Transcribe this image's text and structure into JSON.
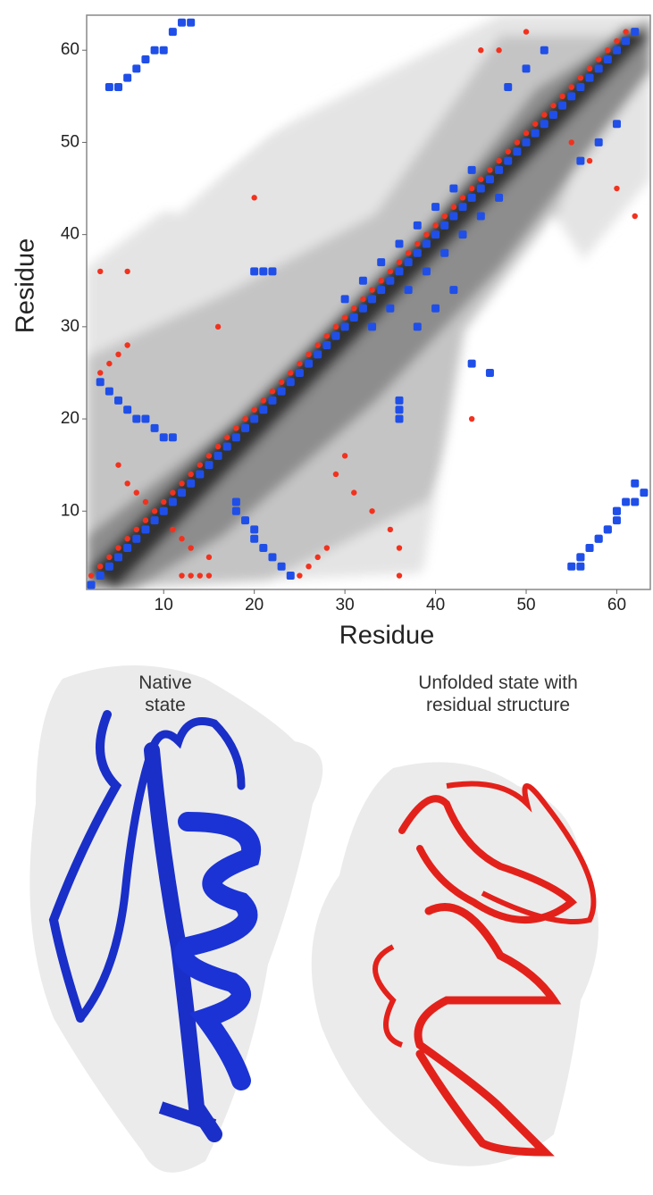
{
  "chart_data": {
    "type": "scatter",
    "x_label": "Residue",
    "y_label": "Residue",
    "xlim": [
      1.5,
      63.7
    ],
    "ylim": [
      1.5,
      63.8
    ],
    "xticks": [
      10,
      20,
      30,
      40,
      50,
      60
    ],
    "yticks": [
      10,
      20,
      30,
      40,
      50,
      60
    ],
    "series": [
      {
        "color": "#1f4fe8",
        "marker": "square",
        "x": [
          2,
          3,
          4,
          5,
          6,
          7,
          8,
          9,
          10,
          11,
          12,
          13,
          14,
          15,
          16,
          17,
          18,
          19,
          20,
          21,
          22,
          23,
          24,
          25,
          26,
          27,
          28,
          29,
          30,
          31,
          32,
          33,
          34,
          35,
          36,
          37,
          38,
          39,
          40,
          41,
          42,
          43,
          44,
          45,
          46,
          47,
          48,
          49,
          50,
          51,
          52,
          53,
          54,
          55,
          56,
          57,
          58,
          59,
          60,
          61,
          62,
          3,
          4,
          5,
          6,
          7,
          8,
          9,
          10,
          11,
          24,
          23,
          22,
          21,
          20,
          20,
          19,
          18,
          18,
          4,
          5,
          6,
          7,
          8,
          9,
          10,
          11,
          12,
          13,
          56,
          56,
          57,
          58,
          59,
          60,
          60,
          62,
          63,
          30,
          32,
          34,
          36,
          38,
          40,
          42,
          44,
          33,
          35,
          37,
          39,
          41,
          43,
          45,
          47,
          20,
          21,
          22,
          36,
          36,
          36,
          48,
          50,
          52,
          56,
          58,
          60,
          55,
          56,
          57,
          58,
          59,
          60,
          61,
          62,
          38,
          40,
          42,
          44,
          46
        ],
        "values": [
          2,
          3,
          4,
          5,
          6,
          7,
          8,
          9,
          10,
          11,
          12,
          13,
          14,
          15,
          16,
          17,
          18,
          19,
          20,
          21,
          22,
          23,
          24,
          25,
          26,
          27,
          28,
          29,
          30,
          31,
          32,
          33,
          34,
          35,
          36,
          37,
          38,
          39,
          40,
          41,
          42,
          43,
          44,
          45,
          46,
          47,
          48,
          49,
          50,
          51,
          52,
          53,
          54,
          55,
          56,
          57,
          58,
          59,
          60,
          61,
          62,
          24,
          23,
          22,
          21,
          20,
          20,
          19,
          18,
          18,
          3,
          4,
          5,
          6,
          7,
          8,
          9,
          10,
          11,
          56,
          56,
          57,
          58,
          59,
          60,
          60,
          62,
          63,
          63,
          4,
          5,
          6,
          7,
          8,
          9,
          10,
          11,
          12,
          33,
          35,
          37,
          39,
          41,
          43,
          45,
          47,
          30,
          32,
          34,
          36,
          38,
          40,
          42,
          44,
          36,
          36,
          36,
          20,
          21,
          22,
          56,
          58,
          60,
          48,
          50,
          52,
          4,
          5,
          6,
          7,
          8,
          10,
          11,
          13,
          30,
          32,
          34,
          26,
          25
        ]
      },
      {
        "color": "#f2321e",
        "marker": "dot",
        "x": [
          2,
          3,
          4,
          5,
          6,
          7,
          8,
          9,
          10,
          11,
          12,
          13,
          14,
          15,
          16,
          17,
          18,
          19,
          20,
          21,
          22,
          23,
          24,
          25,
          26,
          27,
          28,
          29,
          30,
          31,
          32,
          33,
          34,
          35,
          36,
          37,
          38,
          39,
          40,
          41,
          42,
          43,
          44,
          45,
          46,
          47,
          48,
          49,
          50,
          51,
          52,
          53,
          54,
          55,
          56,
          57,
          58,
          59,
          60,
          61,
          5,
          6,
          7,
          8,
          15,
          13,
          12,
          11,
          45,
          47,
          50,
          55,
          57,
          60,
          62,
          30,
          16,
          36,
          36,
          6,
          3,
          20,
          44,
          3,
          4,
          5,
          6,
          25,
          26,
          27,
          28,
          12,
          13,
          14,
          15,
          29,
          31,
          33,
          35
        ],
        "values": [
          3,
          4,
          5,
          6,
          7,
          8,
          9,
          10,
          11,
          12,
          13,
          14,
          15,
          16,
          17,
          18,
          19,
          20,
          21,
          22,
          23,
          24,
          25,
          26,
          27,
          28,
          29,
          30,
          31,
          32,
          33,
          34,
          35,
          36,
          37,
          38,
          39,
          40,
          41,
          42,
          43,
          44,
          45,
          46,
          47,
          48,
          49,
          50,
          51,
          52,
          53,
          54,
          55,
          56,
          57,
          58,
          59,
          60,
          61,
          62,
          15,
          13,
          12,
          11,
          5,
          6,
          7,
          8,
          60,
          60,
          62,
          50,
          48,
          45,
          42,
          16,
          30,
          6,
          3,
          36,
          36,
          44,
          20,
          25,
          26,
          27,
          28,
          3,
          4,
          5,
          6,
          3,
          3,
          3,
          3,
          14,
          12,
          10,
          8
        ]
      }
    ]
  },
  "captions": {
    "native": "Native state",
    "unfolded": "Unfolded state with residual structure"
  }
}
